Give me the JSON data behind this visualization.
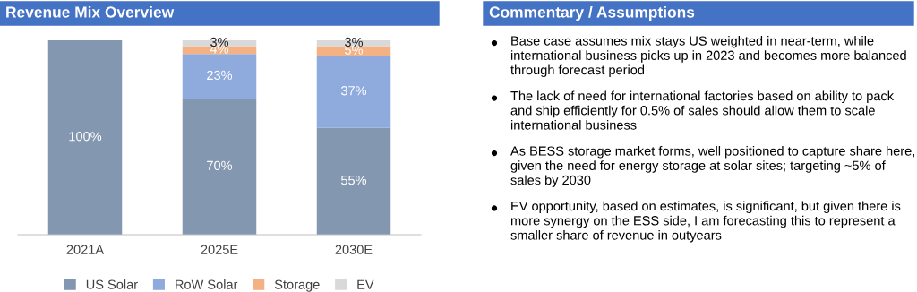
{
  "chart_data": [
    {
      "type": "bar",
      "title": "Revenue Mix Overview",
      "stacked": true,
      "categories": [
        "2021A",
        "2025E",
        "2030E"
      ],
      "legend": "bottom",
      "tick_labels": "x",
      "series": [
        {
          "name": "US Solar",
          "color": "#8497b0",
          "values": [
            100,
            70,
            55
          ],
          "value_labels": [
            "100%",
            "70%",
            "55%"
          ]
        },
        {
          "name": "RoW Solar",
          "color": "#8faadc",
          "values": [
            0,
            23,
            37
          ],
          "value_labels": [
            null,
            "23%",
            "37%"
          ]
        },
        {
          "name": "Storage",
          "color": "#f4b183",
          "values": [
            0,
            4,
            5
          ],
          "value_labels": [
            null,
            "4%",
            "5%"
          ]
        },
        {
          "name": "EV",
          "color": "#d9d9d9",
          "values": [
            0,
            3,
            3
          ],
          "value_labels": [
            null,
            "3%",
            "3%"
          ]
        }
      ]
    },
    {
      "type": "other",
      "title": "Commentary / Assumptions",
      "annotations": [
        "Base case assumes mix stays US weighted in near-term, while international business picks up in 2023 and becomes more balanced through forecast period",
        "The lack of need for international factories based on ability to pack and ship efficiently for 0.5% of sales should allow them to scale international business",
        "As BESS storage market forms, well positioned to capture share here, given the need for energy storage at solar sites; targeting ~5% of sales by 2030",
        "EV opportunity, based on estimates, is significant, but given there is more synergy on the ESS side, I am forecasting this to represent a smaller share of revenue in outyears"
      ]
    }
  ]
}
